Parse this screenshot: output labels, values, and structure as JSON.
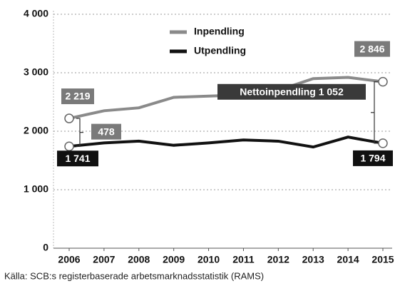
{
  "chart_data": {
    "type": "line",
    "x": [
      2006,
      2007,
      2008,
      2009,
      2010,
      2011,
      2012,
      2013,
      2014,
      2015
    ],
    "series": [
      {
        "name": "Inpendling",
        "color": "#8a8a8a",
        "values": [
          2219,
          2350,
          2400,
          2580,
          2600,
          2620,
          2700,
          2900,
          2920,
          2846
        ]
      },
      {
        "name": "Utpendling",
        "color": "#111111",
        "values": [
          1741,
          1800,
          1830,
          1760,
          1800,
          1850,
          1830,
          1730,
          1900,
          1794
        ]
      }
    ],
    "xlim": [
      2006,
      2015
    ],
    "xticks": [
      2006,
      2007,
      2008,
      2009,
      2010,
      2011,
      2012,
      2013,
      2014,
      2015
    ],
    "ylim": [
      0,
      4000
    ],
    "yticks": [
      0,
      {
        "value": 1000,
        "label": "1 000"
      },
      {
        "value": 2000,
        "label": "2 000"
      },
      {
        "value": 3000,
        "label": "3 000"
      },
      {
        "value": 4000,
        "label": "4 000"
      }
    ],
    "grid": true,
    "annotations": [
      "2 219",
      "478",
      "1 741",
      "2 846",
      "Nettoinpendling 1 052",
      "1 794"
    ],
    "source": "Källa: SCB:s registerbaserade arbetsmarknadsstatistik (RAMS)"
  }
}
